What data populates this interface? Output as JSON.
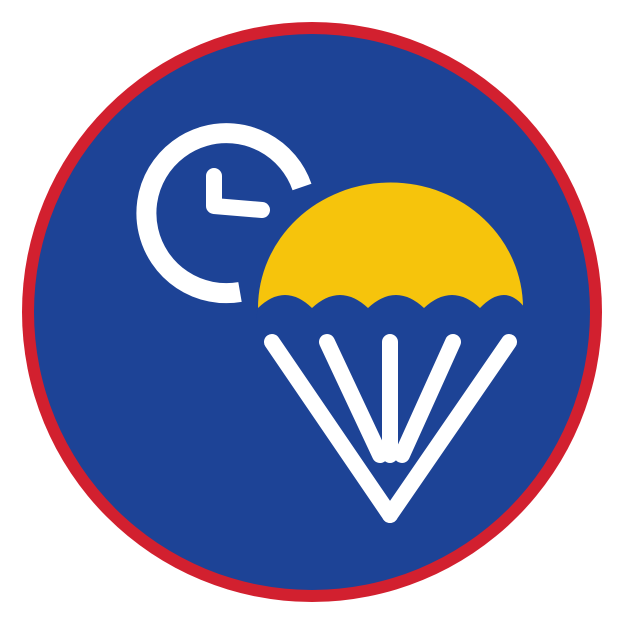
{
  "badge": {
    "icon_names": [
      "clock-icon",
      "parachute-icon"
    ],
    "colors": {
      "ring": "#D2202F",
      "background": "#1D4396",
      "canopy": "#F6C40C",
      "foreground": "#FFFFFF"
    }
  }
}
